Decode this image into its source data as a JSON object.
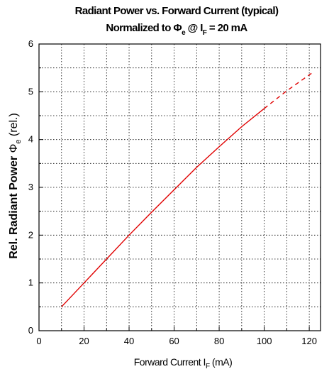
{
  "chart_data": {
    "type": "line",
    "title": "Radiant Power vs. Forward Current (typical)",
    "subtitle": {
      "prefix": "Normalized to ",
      "phi": "Φ",
      "phi_sub": "e",
      "at": " @ I",
      "i_sub": "F",
      "value": " = 20 mA"
    },
    "xlabel": {
      "main": "Forward Current I",
      "sub": "F",
      "unit": " (mA)"
    },
    "ylabel": {
      "bold": "Rel. Radiant Power ",
      "phi": "Φ",
      "sub": "e",
      "unit": " (rel.)"
    },
    "xlim": [
      0,
      125
    ],
    "ylim": [
      0,
      6
    ],
    "xticks": [
      0,
      20,
      40,
      60,
      80,
      100,
      120
    ],
    "yticks": [
      0,
      1,
      2,
      3,
      4,
      5,
      6
    ],
    "grid": true,
    "series": [
      {
        "style": "solid",
        "color": "#e00000",
        "x": [
          10,
          20,
          30,
          40,
          50,
          60,
          70,
          80,
          90,
          100
        ],
        "y": [
          0.5,
          1.0,
          1.5,
          2.0,
          2.48,
          2.95,
          3.42,
          3.85,
          4.27,
          4.65
        ]
      },
      {
        "style": "dashed",
        "color": "#e00000",
        "x": [
          100,
          110,
          122
        ],
        "y": [
          4.65,
          5.02,
          5.42
        ]
      }
    ]
  }
}
